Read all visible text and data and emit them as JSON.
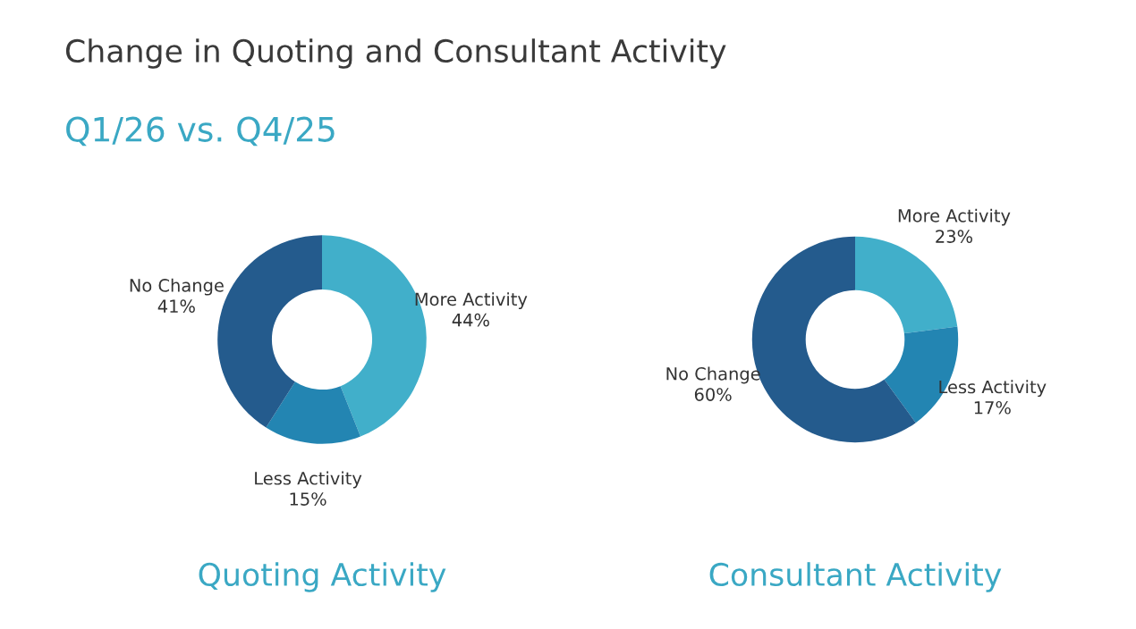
{
  "chart_data": [
    {
      "type": "donut",
      "title": "Quoting Activity",
      "annotations": [
        "Change in Quoting and Consultant Activity",
        "Q1/26 vs. Q4/25"
      ],
      "categories": [
        "More Activity",
        "Less Activity",
        "No Change"
      ],
      "values": [
        44,
        15,
        41
      ],
      "value_labels": [
        "44%",
        "15%",
        "41%"
      ],
      "colors": [
        "#41afca",
        "#2385b2",
        "#245b8d"
      ],
      "legend": false
    },
    {
      "type": "donut",
      "title": "Consultant Activity",
      "categories": [
        "More Activity",
        "Less Activity",
        "No Change"
      ],
      "values": [
        23,
        17,
        60
      ],
      "value_labels": [
        "23%",
        "17%",
        "60%"
      ],
      "colors": [
        "#41afca",
        "#2385b2",
        "#245b8d"
      ],
      "legend": false
    }
  ]
}
